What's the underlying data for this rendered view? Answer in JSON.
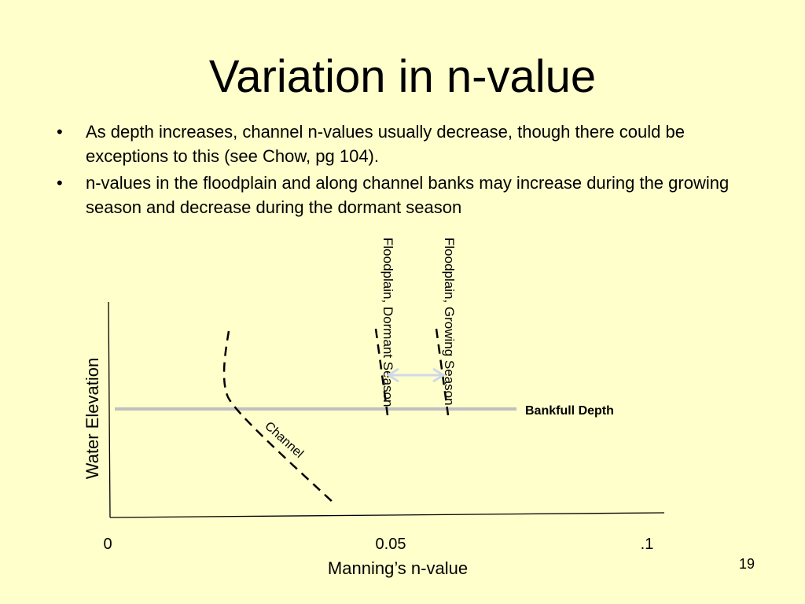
{
  "slide": {
    "title": "Variation in n-value",
    "page_number": "19",
    "bullets": [
      "As depth increases, channel n-values usually decrease, though there could be exceptions to this (see Chow, pg 104).",
      "n-values in the floodplain and along channel banks may increase during the growing season and decrease during the dormant season"
    ]
  },
  "chart_data": {
    "type": "line",
    "xlabel": "Manning’s n-value",
    "ylabel": "Water Elevation",
    "x_ticks": [
      "0",
      "0.05",
      ".1"
    ],
    "xlim": [
      0,
      0.1
    ],
    "reference_line": {
      "label": "Bankfull Depth",
      "color": "#C0C0C0"
    },
    "curves": [
      {
        "label": "Channel",
        "style": "dashed"
      },
      {
        "label": "Floodplain, Dormant Season",
        "style": "dashed"
      },
      {
        "label": "Floodplain, Growing Season",
        "style": "dashed"
      }
    ],
    "arrow_color": "#D0D8E8",
    "grid": false
  }
}
